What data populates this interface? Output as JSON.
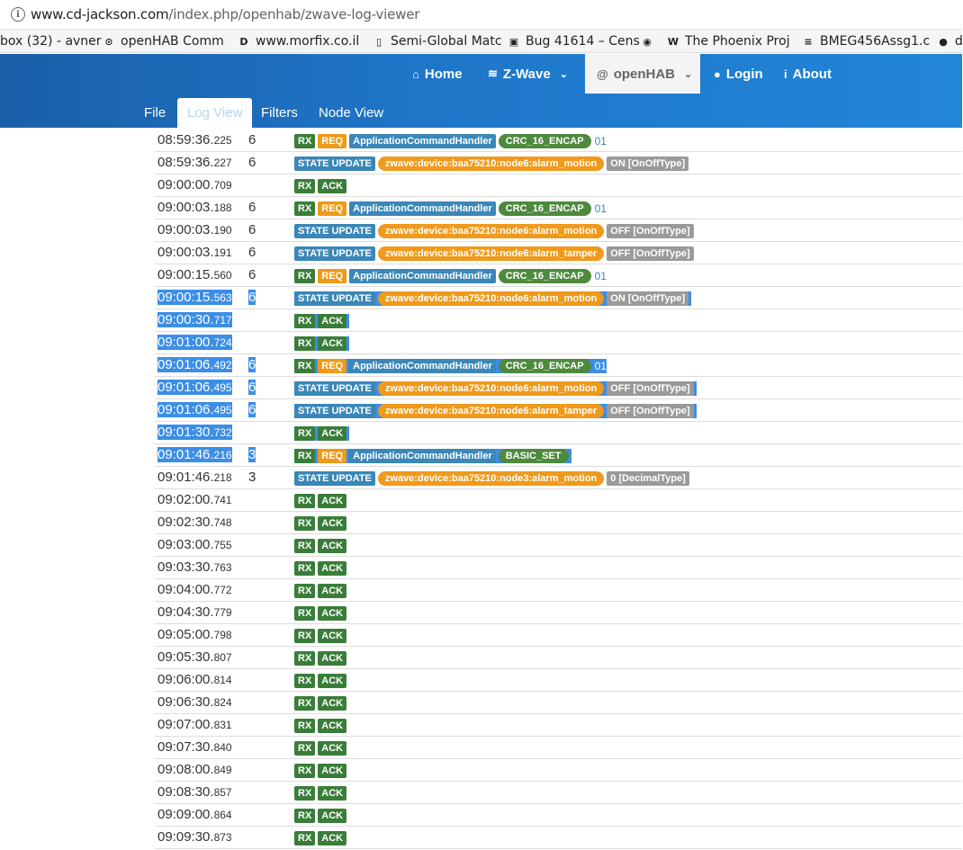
{
  "browser": {
    "url_domain": "www.cd-jackson.com",
    "url_path": "/index.php/openhab/zwave-log-viewer",
    "bookmarks": [
      {
        "label": "box (32) - avner",
        "icon": "",
        "icon_name": "none"
      },
      {
        "label": "openHAB Comm",
        "icon": "⊙",
        "icon_name": "openhab-icon"
      },
      {
        "label": "www.morfix.co.il",
        "icon": "D",
        "icon_name": "morfix-icon"
      },
      {
        "label": "Semi-Global Matc",
        "icon": "▯",
        "icon_name": "document-icon"
      },
      {
        "label": "Bug 41614 – Cens",
        "icon": "▣",
        "icon_name": "bug-icon"
      },
      {
        "label": "W",
        "icon": "◉",
        "icon_name": "circle-icon"
      },
      {
        "label": "The Phoenix Proj",
        "icon": "W",
        "icon_name": "wikipedia-icon"
      },
      {
        "label": "BMEG456Assg1.c",
        "icon": "≡",
        "icon_name": "docs-icon"
      },
      {
        "label": "d",
        "icon": "●",
        "icon_name": "github-icon"
      }
    ]
  },
  "nav": {
    "items": [
      {
        "label": "Home",
        "icon": "⌂",
        "icon_name": "home-icon"
      },
      {
        "label": "Z-Wave",
        "icon": "≋",
        "icon_name": "wifi-icon"
      },
      {
        "label": "openHAB",
        "icon": "@",
        "icon_name": "at-icon"
      },
      {
        "label": "Login",
        "icon": "●",
        "icon_name": "user-icon"
      },
      {
        "label": "About",
        "icon": "i",
        "icon_name": "info-icon"
      }
    ],
    "caret": "⌄",
    "tabs": [
      "File",
      "Log View",
      "Filters",
      "Node View"
    ]
  },
  "log": [
    {
      "time": "08:59:36.",
      "ms": "225",
      "node": "6",
      "tags": [
        [
          "rx",
          "RX"
        ],
        [
          "req",
          "REQ"
        ],
        [
          "handler",
          "ApplicationCommandHandler"
        ],
        [
          "crc",
          "CRC_16_ENCAP"
        ]
      ],
      "tail": "01",
      "sel": false
    },
    {
      "time": "08:59:36.",
      "ms": "227",
      "node": "6",
      "tags": [
        [
          "state",
          "STATE UPDATE"
        ],
        [
          "device",
          "zwave:device:baa75210:node6:alarm_motion"
        ],
        [
          "val",
          "ON [OnOffType]"
        ]
      ],
      "tail": "",
      "sel": false
    },
    {
      "time": "09:00:00.",
      "ms": "709",
      "node": "",
      "tags": [
        [
          "rx",
          "RX"
        ],
        [
          "ack",
          "ACK"
        ]
      ],
      "tail": "",
      "sel": false
    },
    {
      "time": "09:00:03.",
      "ms": "188",
      "node": "6",
      "tags": [
        [
          "rx",
          "RX"
        ],
        [
          "req",
          "REQ"
        ],
        [
          "handler",
          "ApplicationCommandHandler"
        ],
        [
          "crc",
          "CRC_16_ENCAP"
        ]
      ],
      "tail": "01",
      "sel": false
    },
    {
      "time": "09:00:03.",
      "ms": "190",
      "node": "6",
      "tags": [
        [
          "state",
          "STATE UPDATE"
        ],
        [
          "device",
          "zwave:device:baa75210:node6:alarm_motion"
        ],
        [
          "val",
          "OFF [OnOffType]"
        ]
      ],
      "tail": "",
      "sel": false
    },
    {
      "time": "09:00:03.",
      "ms": "191",
      "node": "6",
      "tags": [
        [
          "state",
          "STATE UPDATE"
        ],
        [
          "device",
          "zwave:device:baa75210:node6:alarm_tamper"
        ],
        [
          "val",
          "OFF [OnOffType]"
        ]
      ],
      "tail": "",
      "sel": false
    },
    {
      "time": "09:00:15.",
      "ms": "560",
      "node": "6",
      "tags": [
        [
          "rx",
          "RX"
        ],
        [
          "req",
          "REQ"
        ],
        [
          "handler",
          "ApplicationCommandHandler"
        ],
        [
          "crc",
          "CRC_16_ENCAP"
        ]
      ],
      "tail": "01",
      "sel": false
    },
    {
      "time": "09:00:15.",
      "ms": "563",
      "node": "6",
      "tags": [
        [
          "state",
          "STATE UPDATE"
        ],
        [
          "device",
          "zwave:device:baa75210:node6:alarm_motion"
        ],
        [
          "val",
          "ON [OnOffType]"
        ]
      ],
      "tail": "",
      "sel": true
    },
    {
      "time": "09:00:30.",
      "ms": "717",
      "node": "",
      "tags": [
        [
          "rx",
          "RX"
        ],
        [
          "ack",
          "ACK"
        ]
      ],
      "tail": "",
      "sel": true
    },
    {
      "time": "09:01:00.",
      "ms": "724",
      "node": "",
      "tags": [
        [
          "rx",
          "RX"
        ],
        [
          "ack",
          "ACK"
        ]
      ],
      "tail": "",
      "sel": true
    },
    {
      "time": "09:01:06.",
      "ms": "492",
      "node": "6",
      "tags": [
        [
          "rx",
          "RX"
        ],
        [
          "req",
          "REQ"
        ],
        [
          "handler",
          "ApplicationCommandHandler"
        ],
        [
          "crc",
          "CRC_16_ENCAP"
        ]
      ],
      "tail": "01",
      "sel": true
    },
    {
      "time": "09:01:06.",
      "ms": "495",
      "node": "6",
      "tags": [
        [
          "state",
          "STATE UPDATE"
        ],
        [
          "device",
          "zwave:device:baa75210:node6:alarm_motion"
        ],
        [
          "val",
          "OFF [OnOffType]"
        ]
      ],
      "tail": "",
      "sel": true
    },
    {
      "time": "09:01:06.",
      "ms": "495",
      "node": "6",
      "tags": [
        [
          "state",
          "STATE UPDATE"
        ],
        [
          "device",
          "zwave:device:baa75210:node6:alarm_tamper"
        ],
        [
          "val",
          "OFF [OnOffType]"
        ]
      ],
      "tail": "",
      "sel": true
    },
    {
      "time": "09:01:30.",
      "ms": "732",
      "node": "",
      "tags": [
        [
          "rx",
          "RX"
        ],
        [
          "ack",
          "ACK"
        ]
      ],
      "tail": "",
      "sel": true
    },
    {
      "time": "09:01:46.",
      "ms": "216",
      "node": "3",
      "tags": [
        [
          "rx",
          "RX"
        ],
        [
          "req",
          "REQ"
        ],
        [
          "handler",
          "ApplicationCommandHandler"
        ],
        [
          "crc",
          "BASIC_SET"
        ]
      ],
      "tail": "",
      "sel": true
    },
    {
      "time": "09:01:46.",
      "ms": "218",
      "node": "3",
      "tags": [
        [
          "state",
          "STATE UPDATE"
        ],
        [
          "device",
          "zwave:device:baa75210:node3:alarm_motion"
        ],
        [
          "val",
          "0 [DecimalType]"
        ]
      ],
      "tail": "",
      "sel": false
    },
    {
      "time": "09:02:00.",
      "ms": "741",
      "node": "",
      "tags": [
        [
          "rx",
          "RX"
        ],
        [
          "ack",
          "ACK"
        ]
      ],
      "tail": "",
      "sel": false
    },
    {
      "time": "09:02:30.",
      "ms": "748",
      "node": "",
      "tags": [
        [
          "rx",
          "RX"
        ],
        [
          "ack",
          "ACK"
        ]
      ],
      "tail": "",
      "sel": false
    },
    {
      "time": "09:03:00.",
      "ms": "755",
      "node": "",
      "tags": [
        [
          "rx",
          "RX"
        ],
        [
          "ack",
          "ACK"
        ]
      ],
      "tail": "",
      "sel": false
    },
    {
      "time": "09:03:30.",
      "ms": "763",
      "node": "",
      "tags": [
        [
          "rx",
          "RX"
        ],
        [
          "ack",
          "ACK"
        ]
      ],
      "tail": "",
      "sel": false
    },
    {
      "time": "09:04:00.",
      "ms": "772",
      "node": "",
      "tags": [
        [
          "rx",
          "RX"
        ],
        [
          "ack",
          "ACK"
        ]
      ],
      "tail": "",
      "sel": false
    },
    {
      "time": "09:04:30.",
      "ms": "779",
      "node": "",
      "tags": [
        [
          "rx",
          "RX"
        ],
        [
          "ack",
          "ACK"
        ]
      ],
      "tail": "",
      "sel": false
    },
    {
      "time": "09:05:00.",
      "ms": "798",
      "node": "",
      "tags": [
        [
          "rx",
          "RX"
        ],
        [
          "ack",
          "ACK"
        ]
      ],
      "tail": "",
      "sel": false
    },
    {
      "time": "09:05:30.",
      "ms": "807",
      "node": "",
      "tags": [
        [
          "rx",
          "RX"
        ],
        [
          "ack",
          "ACK"
        ]
      ],
      "tail": "",
      "sel": false
    },
    {
      "time": "09:06:00.",
      "ms": "814",
      "node": "",
      "tags": [
        [
          "rx",
          "RX"
        ],
        [
          "ack",
          "ACK"
        ]
      ],
      "tail": "",
      "sel": false
    },
    {
      "time": "09:06:30.",
      "ms": "824",
      "node": "",
      "tags": [
        [
          "rx",
          "RX"
        ],
        [
          "ack",
          "ACK"
        ]
      ],
      "tail": "",
      "sel": false
    },
    {
      "time": "09:07:00.",
      "ms": "831",
      "node": "",
      "tags": [
        [
          "rx",
          "RX"
        ],
        [
          "ack",
          "ACK"
        ]
      ],
      "tail": "",
      "sel": false
    },
    {
      "time": "09:07:30.",
      "ms": "840",
      "node": "",
      "tags": [
        [
          "rx",
          "RX"
        ],
        [
          "ack",
          "ACK"
        ]
      ],
      "tail": "",
      "sel": false
    },
    {
      "time": "09:08:00.",
      "ms": "849",
      "node": "",
      "tags": [
        [
          "rx",
          "RX"
        ],
        [
          "ack",
          "ACK"
        ]
      ],
      "tail": "",
      "sel": false
    },
    {
      "time": "09:08:30.",
      "ms": "857",
      "node": "",
      "tags": [
        [
          "rx",
          "RX"
        ],
        [
          "ack",
          "ACK"
        ]
      ],
      "tail": "",
      "sel": false
    },
    {
      "time": "09:09:00.",
      "ms": "864",
      "node": "",
      "tags": [
        [
          "rx",
          "RX"
        ],
        [
          "ack",
          "ACK"
        ]
      ],
      "tail": "",
      "sel": false
    },
    {
      "time": "09:09:30.",
      "ms": "873",
      "node": "",
      "tags": [
        [
          "rx",
          "RX"
        ],
        [
          "ack",
          "ACK"
        ]
      ],
      "tail": "",
      "sel": false
    }
  ]
}
